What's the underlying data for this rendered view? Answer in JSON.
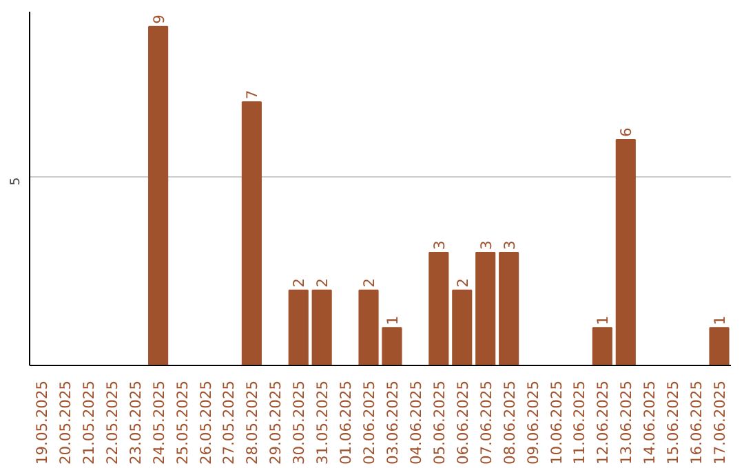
{
  "chart_data": {
    "type": "bar",
    "categories": [
      "19.05.2025",
      "20.05.2025",
      "21.05.2025",
      "22.05.2025",
      "23.05.2025",
      "24.05.2025",
      "25.05.2025",
      "26.05.2025",
      "27.05.2025",
      "28.05.2025",
      "29.05.2025",
      "30.05.2025",
      "31.05.2025",
      "01.06.2025",
      "02.06.2025",
      "03.06.2025",
      "04.06.2025",
      "05.06.2025",
      "06.06.2025",
      "07.06.2025",
      "08.06.2025",
      "09.06.2025",
      "10.06.2025",
      "11.06.2025",
      "12.06.2025",
      "13.06.2025",
      "14.06.2025",
      "15.06.2025",
      "16.06.2025",
      "17.06.2025"
    ],
    "values": [
      null,
      null,
      null,
      null,
      null,
      9,
      null,
      null,
      null,
      7,
      null,
      2,
      2,
      null,
      2,
      1,
      null,
      3,
      2,
      3,
      3,
      null,
      null,
      null,
      1,
      6,
      null,
      null,
      null,
      1
    ],
    "color": "#a0522d",
    "ylim": [
      0,
      9.4
    ],
    "yticks": [
      5
    ],
    "grid": "y",
    "data_labels": true
  }
}
